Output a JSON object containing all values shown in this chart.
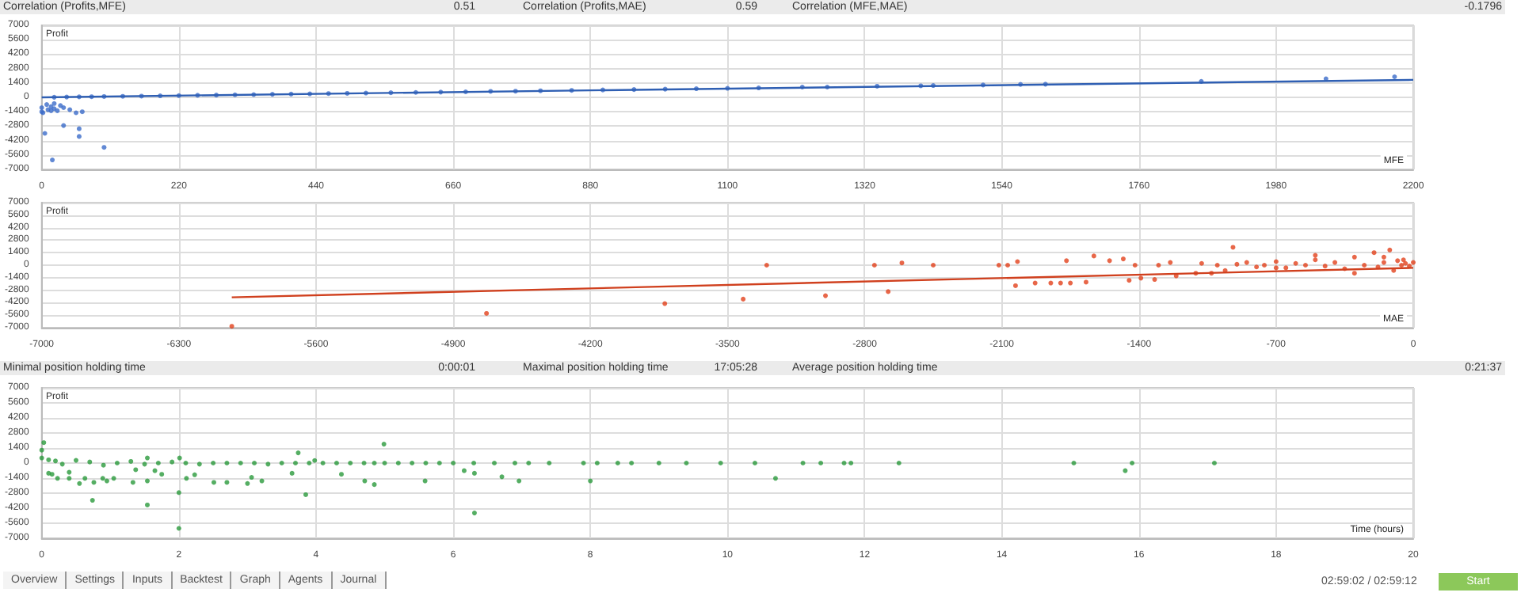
{
  "chart_data": [
    {
      "type": "scatter",
      "ylabel": "Profit",
      "xlabel": "MFE",
      "xlim": [
        0,
        2200
      ],
      "xticks": [
        0,
        220,
        440,
        660,
        880,
        1100,
        1320,
        1540,
        1760,
        1980,
        2200
      ],
      "ylim": [
        -7000,
        7000
      ],
      "yticks": [
        -7000,
        -5600,
        -4200,
        -2800,
        -1400,
        0,
        1400,
        2800,
        4200,
        5600,
        7000
      ],
      "grid": true,
      "marker": "circle",
      "annotations": [
        "Correlation (Profits,MFE)",
        "0.51",
        "Correlation (Profits,MAE)",
        "0.59",
        "Correlation (MFE,MAE)",
        "-0.1796"
      ],
      "series": [
        {
          "color": "#3b6cc9",
          "x": [
            0,
            0,
            2,
            5,
            8,
            10,
            15,
            15,
            17,
            20,
            20,
            25,
            30,
            35,
            35,
            45,
            55,
            60,
            60,
            65,
            100,
            20,
            40,
            60,
            80,
            100,
            130,
            160,
            190,
            220,
            250,
            280,
            310,
            340,
            370,
            400,
            430,
            460,
            490,
            520,
            560,
            600,
            640,
            680,
            720,
            760,
            800,
            850,
            900,
            950,
            1000,
            1050,
            1100,
            1150,
            1220,
            1260,
            1340,
            1410,
            1430,
            1510,
            1570,
            1610,
            1860,
            2060,
            2170
          ],
          "values": [
            -1400,
            -1000,
            -1500,
            -3500,
            -700,
            -1200,
            -900,
            -1300,
            -6080,
            -600,
            -1100,
            -1300,
            -800,
            -2740,
            -1000,
            -1200,
            -1500,
            -3050,
            -3800,
            -1400,
            -4860,
            10,
            30,
            50,
            60,
            80,
            100,
            120,
            150,
            170,
            200,
            220,
            250,
            270,
            300,
            320,
            340,
            370,
            390,
            420,
            450,
            480,
            510,
            540,
            580,
            600,
            640,
            680,
            720,
            760,
            800,
            840,
            880,
            920,
            1000,
            1000,
            1080,
            1120,
            1150,
            1200,
            1260,
            1280,
            1550,
            1800,
            2000
          ]
        },
        {
          "type": "line",
          "marker": "none",
          "color": "#2f5fb3",
          "x": [
            0,
            2200
          ],
          "values": [
            0,
            1700
          ]
        }
      ]
    },
    {
      "type": "scatter",
      "ylabel": "Profit",
      "xlabel": "MAE",
      "xlim": [
        -7000,
        0
      ],
      "xticks": [
        -7000,
        -6300,
        -5600,
        -4900,
        -4200,
        -3500,
        -2800,
        -2100,
        -1400,
        -700,
        0
      ],
      "ylim": [
        -7000,
        7000
      ],
      "yticks": [
        -7000,
        -5600,
        -4200,
        -2800,
        -1400,
        0,
        1400,
        2800,
        4200,
        5600,
        7000
      ],
      "grid": true,
      "marker": "circle",
      "series": [
        {
          "color": "#e2411c",
          "x": [
            -6030,
            -4730,
            -3820,
            -3420,
            -3300,
            -3000,
            -2750,
            -2680,
            -2610,
            -2450,
            -2115,
            -2070,
            -2030,
            -2020,
            -1930,
            -1850,
            -1800,
            -1770,
            -1750,
            -1670,
            -1630,
            -1550,
            -1480,
            -1450,
            -1420,
            -1390,
            -1320,
            -1300,
            -1240,
            -1210,
            -1110,
            -1080,
            -1030,
            -1000,
            -960,
            -920,
            -900,
            -850,
            -800,
            -760,
            -700,
            -650,
            -600,
            -550,
            -500,
            -450,
            -400,
            -350,
            -300,
            -250,
            -200,
            -180,
            -150,
            -120,
            -100,
            -80,
            -60,
            -40,
            -20,
            0,
            -300,
            -500,
            -700,
            -150,
            -50
          ],
          "values": [
            -6840,
            -5400,
            -4300,
            -3800,
            0,
            -3420,
            0,
            -2960,
            250,
            0,
            0,
            0,
            -2300,
            400,
            -2000,
            -2000,
            -2000,
            500,
            -2000,
            -1900,
            1030,
            500,
            700,
            -1700,
            0,
            -1450,
            -1600,
            0,
            300,
            -1200,
            -900,
            200,
            -900,
            0,
            -600,
            2000,
            100,
            300,
            -200,
            0,
            400,
            -300,
            200,
            0,
            600,
            -100,
            300,
            -400,
            900,
            0,
            1400,
            -200,
            300,
            1700,
            -600,
            500,
            0,
            200,
            -100,
            300,
            -900,
            1100,
            -300,
            900,
            600
          ]
        },
        {
          "type": "line",
          "marker": "none",
          "color": "#d0401e",
          "x": [
            -6030,
            0
          ],
          "values": [
            -3600,
            -300
          ]
        }
      ]
    },
    {
      "type": "scatter",
      "ylabel": "Profit",
      "xlabel": "Time (hours)",
      "xlim": [
        0,
        20
      ],
      "xticks": [
        0,
        2,
        4,
        6,
        8,
        10,
        12,
        14,
        16,
        18,
        20
      ],
      "ylim": [
        -7000,
        7000
      ],
      "yticks": [
        -7000,
        -5600,
        -4200,
        -2800,
        -1400,
        0,
        1400,
        2800,
        4200,
        5600,
        7000
      ],
      "grid": true,
      "marker": "circle",
      "annotations": [
        "Minimal position holding time",
        "0:00:01",
        "Maximal position holding time",
        "17:05:28",
        "Average position holding time",
        "0:21:37"
      ],
      "series": [
        {
          "color": "#2a9a3c",
          "x": [
            0.03,
            0,
            0,
            0.1,
            0.2,
            0.3,
            0.5,
            0.7,
            0.9,
            1.1,
            1.3,
            1.5,
            1.7,
            1.9,
            2.1,
            2.3,
            2.5,
            2.7,
            2.9,
            3.1,
            3.3,
            3.5,
            3.7,
            3.9,
            4.1,
            4.3,
            4.5,
            4.7,
            4.85,
            5.0,
            5.2,
            5.4,
            5.6,
            5.8,
            6.0,
            6.3,
            6.6,
            6.9,
            7.1,
            7.4,
            7.9,
            8.1,
            8.4,
            8.6,
            9.0,
            9.4,
            9.9,
            10.4,
            11.1,
            11.36,
            11.7,
            11.8,
            12.5,
            15.05,
            15.9,
            17.1,
            0.15,
            0.23,
            0.1,
            0.4,
            0.4,
            0.55,
            0.63,
            0.76,
            0.74,
            0.89,
            0.95,
            1.05,
            1.33,
            1.37,
            1.54,
            1.54,
            1.54,
            1.65,
            1.75,
            2.0,
            2.0,
            2.01,
            2.11,
            2.23,
            2.51,
            2.7,
            3.0,
            3.06,
            3.21,
            3.65,
            3.74,
            3.85,
            3.98,
            4.37,
            4.71,
            4.85,
            4.99,
            5.59,
            6.16,
            6.31,
            6.31,
            6.71,
            6.96,
            8.0,
            10.7,
            15.8
          ],
          "values": [
            1900,
            1200,
            475,
            300,
            200,
            -100,
            250,
            100,
            -200,
            0,
            150,
            -100,
            0,
            100,
            0,
            -100,
            0,
            0,
            0,
            0,
            -100,
            0,
            0,
            0,
            0,
            0,
            0,
            0,
            0,
            0,
            0,
            0,
            0,
            0,
            0,
            0,
            0,
            0,
            0,
            0,
            0,
            0,
            0,
            0,
            0,
            0,
            0,
            0,
            0,
            0,
            0,
            0,
            0,
            0,
            0,
            0,
            -1045,
            -1425,
            -950,
            -1425,
            -855,
            -1900,
            -1425,
            -1800,
            -3470,
            -1425,
            -1660,
            -1425,
            -1800,
            -620,
            -3900,
            -1660,
            475,
            -710,
            -1045,
            -2750,
            -6080,
            475,
            -1425,
            -1090,
            -1800,
            -1800,
            -1900,
            -1330,
            -1660,
            -950,
            950,
            -2945,
            240,
            -1045,
            -1660,
            -2000,
            1760,
            -1660,
            -710,
            -4650,
            -950,
            -1280,
            -1660,
            -1660,
            -1425,
            -710
          ]
        }
      ]
    },
    {
      "type": "other",
      "annotations": [
        "Overview",
        "Settings",
        "Inputs",
        "Backtest",
        "Graph",
        "Agents",
        "Journal",
        "02:59:02 / 02:59:12",
        "Start"
      ]
    }
  ]
}
